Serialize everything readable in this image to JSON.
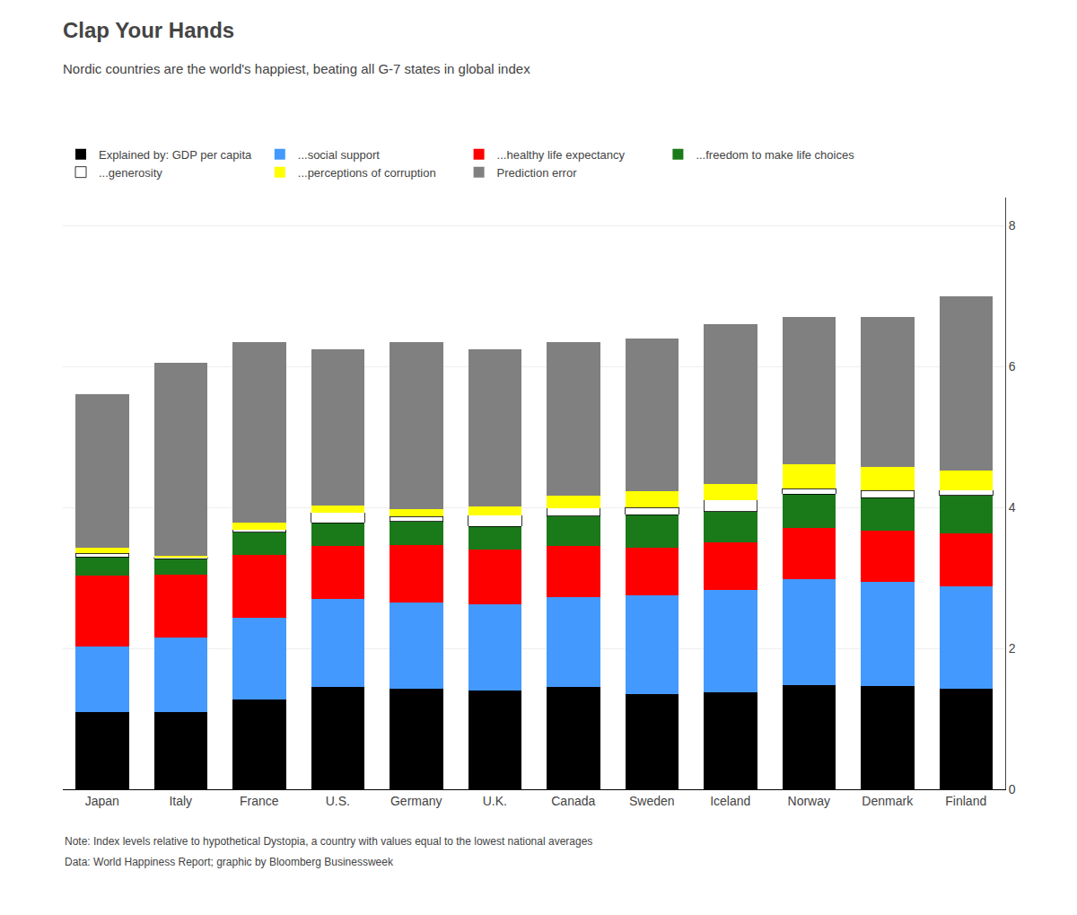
{
  "chart_data": {
    "type": "bar",
    "title": "Clap Your Hands",
    "subtitle": "Nordic countries are the world's happiest, beating all G-7 states in global index",
    "annotations": [
      "Note: Index levels relative to hypothetical Dystopia, a country with values equal to the lowest national averages",
      "Data: World Happiness Report; graphic by Bloomberg Businessweek"
    ],
    "categories": [
      "Japan",
      "Italy",
      "France",
      "U.S.",
      "Germany",
      "U.K.",
      "Canada",
      "Sweden",
      "Iceland",
      "Norway",
      "Denmark",
      "Finland"
    ],
    "series": [
      {
        "name": "Explained by: GDP per capita",
        "color": "#000000",
        "values": [
          1.1,
          1.1,
          1.28,
          1.45,
          1.43,
          1.4,
          1.45,
          1.35,
          1.38,
          1.48,
          1.46,
          1.43
        ]
      },
      {
        "name": "...social support",
        "color": "#4499FF",
        "values": [
          0.93,
          1.05,
          1.15,
          1.25,
          1.22,
          1.22,
          1.28,
          1.4,
          1.45,
          1.5,
          1.48,
          1.45
        ]
      },
      {
        "name": "...healthy life expectancy",
        "color": "#FF0000",
        "values": [
          1.0,
          0.9,
          0.9,
          0.75,
          0.82,
          0.78,
          0.73,
          0.68,
          0.68,
          0.73,
          0.73,
          0.75
        ]
      },
      {
        "name": "...freedom to make life choices",
        "color": "#1A7A1A",
        "values": [
          0.27,
          0.22,
          0.32,
          0.33,
          0.33,
          0.33,
          0.42,
          0.47,
          0.43,
          0.48,
          0.47,
          0.54
        ]
      },
      {
        "name": "...generosity",
        "color": "#FFFFFF",
        "values": [
          0.05,
          0.02,
          0.04,
          0.15,
          0.07,
          0.16,
          0.11,
          0.1,
          0.17,
          0.08,
          0.1,
          0.08
        ]
      },
      {
        "name": "...perceptions of corruption",
        "color": "#FFFF00",
        "values": [
          0.08,
          0.02,
          0.1,
          0.1,
          0.11,
          0.12,
          0.18,
          0.23,
          0.23,
          0.35,
          0.34,
          0.27
        ]
      },
      {
        "name": "Prediction error",
        "color": "#808080",
        "values": [
          2.18,
          2.74,
          2.56,
          2.22,
          2.37,
          2.24,
          2.18,
          2.17,
          2.26,
          2.08,
          2.12,
          2.48
        ]
      }
    ],
    "stacked": true,
    "ylim": [
      0,
      8.4
    ],
    "yticks": [
      0,
      2,
      4,
      6,
      8
    ],
    "grid": true,
    "legend": "top"
  }
}
